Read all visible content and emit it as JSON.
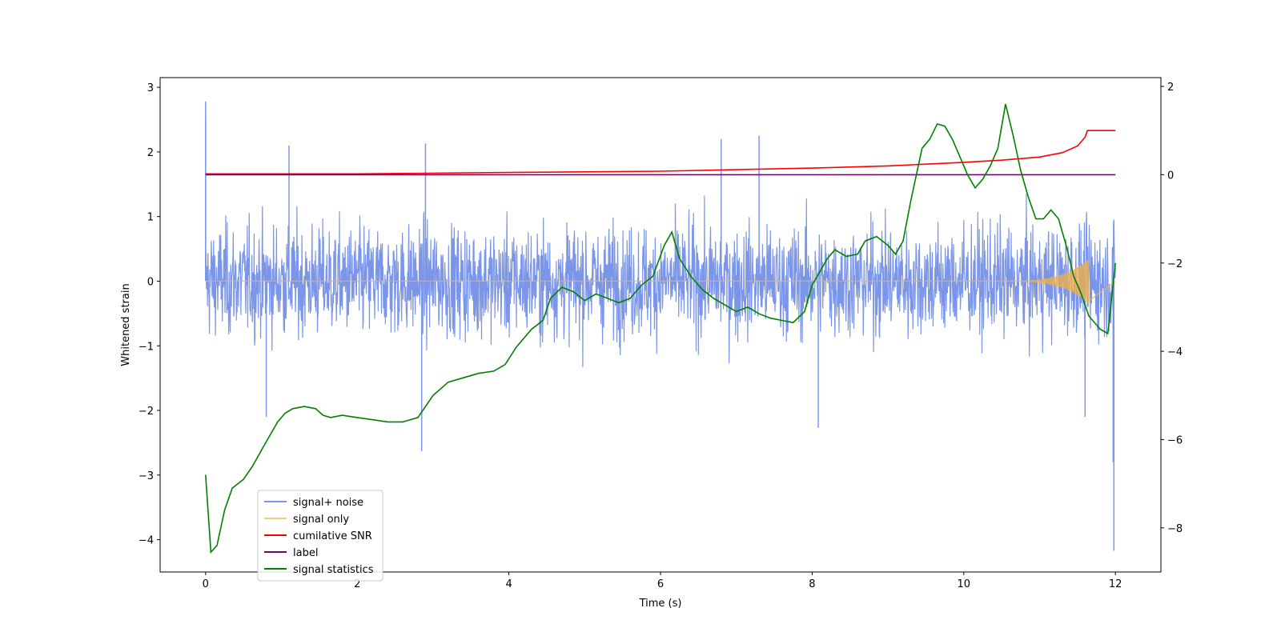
{
  "chart_data": {
    "type": "line",
    "xlabel": "Time (s)",
    "ylabel": "Whitened strain",
    "xlim": [
      -0.6,
      12.6
    ],
    "ylim": [
      -4.5,
      3.15
    ],
    "ylim_right": [
      -9.0,
      2.2
    ],
    "xticks": [
      0,
      2,
      4,
      6,
      8,
      10,
      12
    ],
    "yticks": [
      -4,
      -3,
      -2,
      -1,
      0,
      1,
      2,
      3
    ],
    "yticks_right": [
      -8,
      -6,
      -4,
      -2,
      0,
      2
    ],
    "legend_position": "lower-left",
    "series": [
      {
        "name": "signal+ noise",
        "axis": "left",
        "color": "#7b96e8",
        "description": "whitened strain, noise band roughly -1.0 to 1.0 with spikes to about +/-2",
        "spikes": [
          {
            "x": 0.0,
            "y": 2.78
          },
          {
            "x": 0.0,
            "y": 2.5
          },
          {
            "x": 0.8,
            "y": -2.1
          },
          {
            "x": 1.1,
            "y": 2.1
          },
          {
            "x": 2.85,
            "y": -2.63
          },
          {
            "x": 2.9,
            "y": 2.13
          },
          {
            "x": 6.8,
            "y": 2.2
          },
          {
            "x": 7.3,
            "y": 2.25
          },
          {
            "x": 8.08,
            "y": -2.27
          },
          {
            "x": 11.6,
            "y": -2.1
          },
          {
            "x": 11.98,
            "y": -4.17
          },
          {
            "x": 11.97,
            "y": -2.8
          }
        ]
      },
      {
        "name": "signal only",
        "axis": "left",
        "color": "#f5b041",
        "description": "flat at 0 with chirp growing near the end (amplitude about 0.35 at 11.65 s)"
      },
      {
        "name": "cumilative SNR",
        "axis": "right",
        "color": "#ff0000",
        "x": [
          0,
          2,
          4,
          6,
          8,
          9,
          10,
          10.5,
          11,
          11.3,
          11.5,
          11.6,
          11.63,
          11.66,
          12
        ],
        "y": [
          0.02,
          0.02,
          0.05,
          0.08,
          0.15,
          0.2,
          0.28,
          0.33,
          0.4,
          0.5,
          0.65,
          0.85,
          1.0,
          1.0,
          1.0
        ]
      },
      {
        "name": "label",
        "axis": "right",
        "color": "#6a0d6a",
        "x": [
          0,
          12
        ],
        "y": [
          0.0,
          0.0
        ]
      },
      {
        "name": "signal statistics",
        "axis": "right",
        "color": "#008000",
        "x": [
          0,
          0.07,
          0.15,
          0.25,
          0.35,
          0.5,
          0.62,
          0.75,
          0.85,
          0.95,
          1.05,
          1.15,
          1.3,
          1.45,
          1.55,
          1.65,
          1.8,
          2.0,
          2.2,
          2.4,
          2.6,
          2.8,
          3.0,
          3.2,
          3.4,
          3.6,
          3.8,
          3.95,
          4.1,
          4.3,
          4.45,
          4.55,
          4.7,
          4.85,
          5.0,
          5.15,
          5.3,
          5.45,
          5.6,
          5.75,
          5.9,
          6.05,
          6.15,
          6.25,
          6.4,
          6.55,
          6.7,
          6.85,
          7.0,
          7.15,
          7.3,
          7.45,
          7.6,
          7.75,
          7.9,
          8.0,
          8.1,
          8.2,
          8.3,
          8.45,
          8.6,
          8.7,
          8.85,
          9.0,
          9.1,
          9.2,
          9.3,
          9.45,
          9.55,
          9.65,
          9.75,
          9.85,
          9.95,
          10.05,
          10.15,
          10.25,
          10.35,
          10.45,
          10.55,
          10.65,
          10.75,
          10.85,
          10.95,
          11.05,
          11.15,
          11.25,
          11.35,
          11.45,
          11.55,
          11.65,
          11.8,
          11.9,
          12.0
        ],
        "y": [
          -6.8,
          -8.55,
          -8.4,
          -7.6,
          -7.1,
          -6.9,
          -6.6,
          -6.2,
          -5.9,
          -5.6,
          -5.4,
          -5.3,
          -5.25,
          -5.3,
          -5.45,
          -5.5,
          -5.45,
          -5.5,
          -5.55,
          -5.6,
          -5.6,
          -5.5,
          -5.0,
          -4.7,
          -4.6,
          -4.5,
          -4.45,
          -4.3,
          -3.9,
          -3.5,
          -3.3,
          -2.8,
          -2.55,
          -2.65,
          -2.85,
          -2.7,
          -2.8,
          -2.9,
          -2.8,
          -2.5,
          -2.3,
          -1.6,
          -1.3,
          -1.9,
          -2.3,
          -2.6,
          -2.8,
          -2.95,
          -3.1,
          -3.0,
          -3.15,
          -3.25,
          -3.3,
          -3.35,
          -3.1,
          -2.5,
          -2.2,
          -1.9,
          -1.7,
          -1.85,
          -1.8,
          -1.5,
          -1.4,
          -1.6,
          -1.8,
          -1.5,
          -0.6,
          0.6,
          0.8,
          1.15,
          1.1,
          0.8,
          0.4,
          0.0,
          -0.3,
          -0.1,
          0.2,
          0.6,
          1.6,
          0.9,
          0.1,
          -0.5,
          -1.0,
          -1.0,
          -0.8,
          -1.0,
          -1.6,
          -2.3,
          -2.7,
          -3.2,
          -3.5,
          -3.6,
          -2.0
        ]
      }
    ]
  }
}
